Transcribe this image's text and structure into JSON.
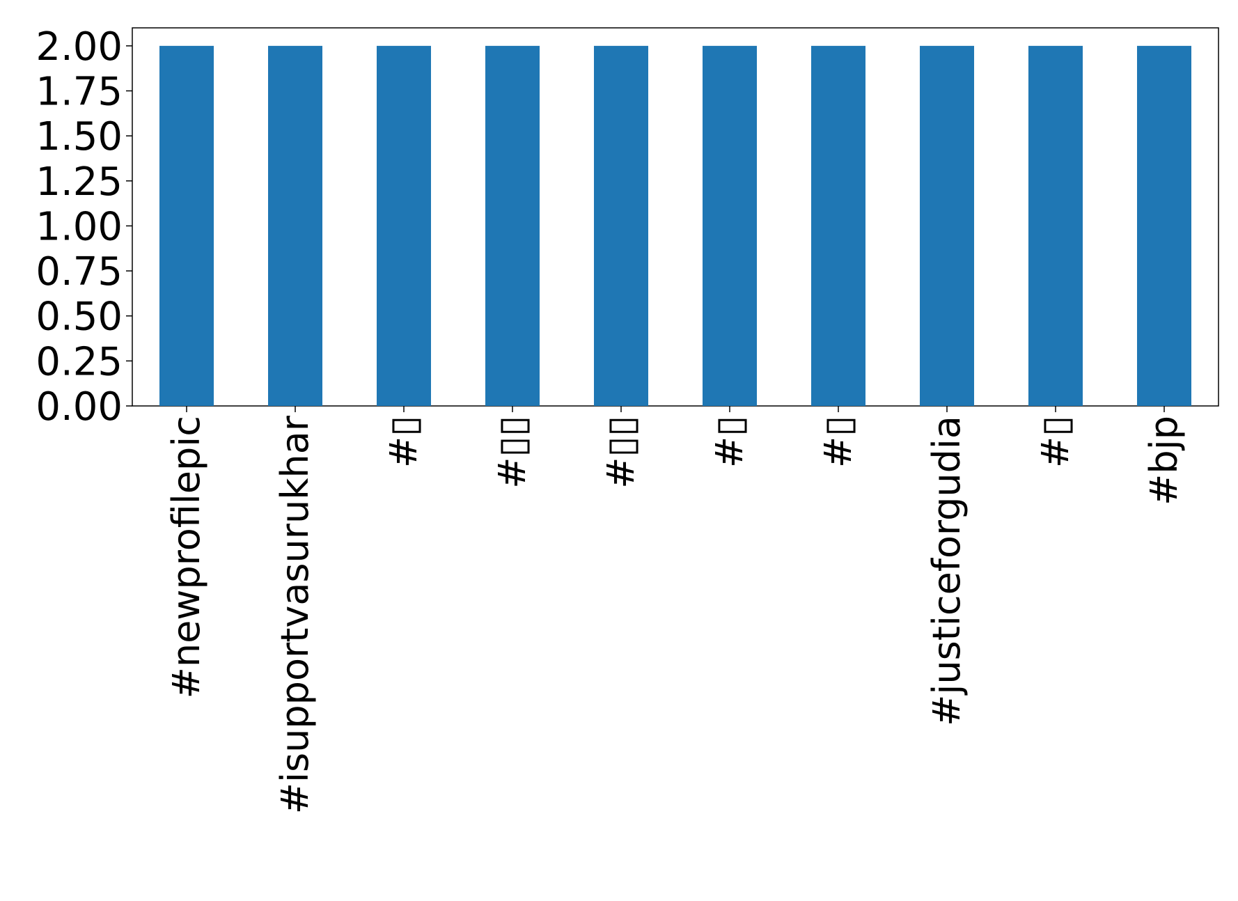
{
  "chart_data": {
    "type": "bar",
    "title": "",
    "xlabel": "",
    "ylabel": "",
    "categories": [
      "#newprofilepic",
      "#isupportvasurukhar",
      "#▯",
      "#▯▯",
      "#▯▯",
      "#▯",
      "#▯",
      "#justiceforgudia",
      "#▯",
      "#bjp"
    ],
    "values": [
      2,
      2,
      2,
      2,
      2,
      2,
      2,
      2,
      2,
      2
    ],
    "ylim": [
      0,
      2.1
    ],
    "yticks": [
      "0.00",
      "0.25",
      "0.50",
      "0.75",
      "1.00",
      "1.25",
      "1.50",
      "1.75",
      "2.00"
    ],
    "bar_color": "#1f77b4",
    "grid": false,
    "legend": "none"
  }
}
